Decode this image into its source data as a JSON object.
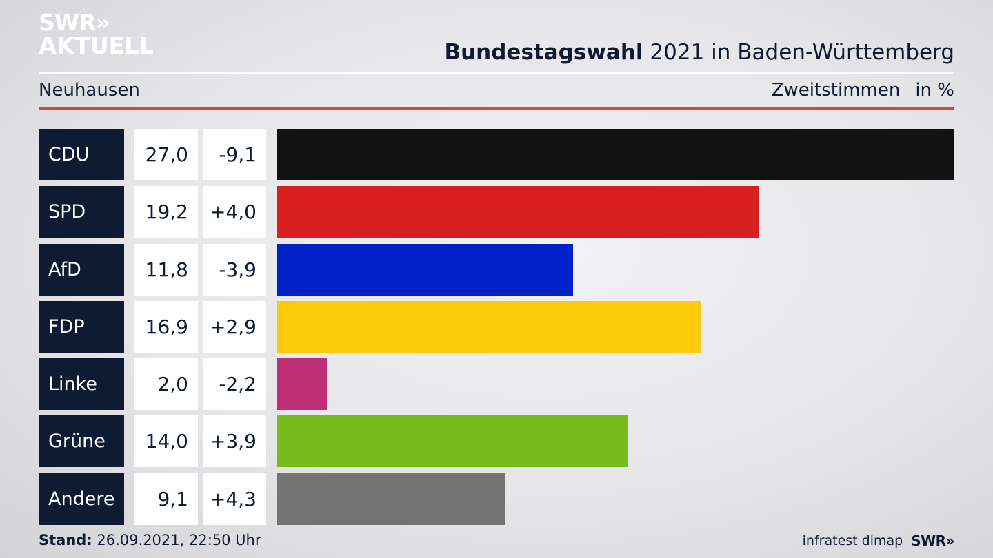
{
  "logo": {
    "line1": "SWR»",
    "line2": "AKTUELL"
  },
  "header": {
    "title_bold": "Bundestagswahl",
    "title_rest": " 2021 in Baden-Württemberg",
    "region": "Neuhausen",
    "measure": "Zweitstimmen",
    "unit": "in %"
  },
  "chart_data": {
    "type": "bar",
    "categories": [
      "CDU",
      "SPD",
      "AfD",
      "FDP",
      "Linke",
      "Grüne",
      "Andere"
    ],
    "values": [
      27.0,
      19.2,
      11.8,
      16.9,
      2.0,
      14.0,
      9.1
    ],
    "value_labels": [
      "27,0",
      "19,2",
      "11,8",
      "16,9",
      "2,0",
      "14,0",
      "9,1"
    ],
    "diff_labels": [
      "-9,1",
      "+4,0",
      "-3,9",
      "+2,9",
      "-2,2",
      "+3,9",
      "+4,3"
    ],
    "colors": [
      "#121212",
      "#d71f1f",
      "#0021c8",
      "#fdcb0b",
      "#bd3075",
      "#78bc1b",
      "#737373"
    ],
    "xlim": [
      0,
      27.0
    ]
  },
  "footer": {
    "stand_label": "Stand:",
    "stand_value": " 26.09.2021, 22:50 Uhr",
    "source": "infratest dimap",
    "brand": "SWR»"
  }
}
